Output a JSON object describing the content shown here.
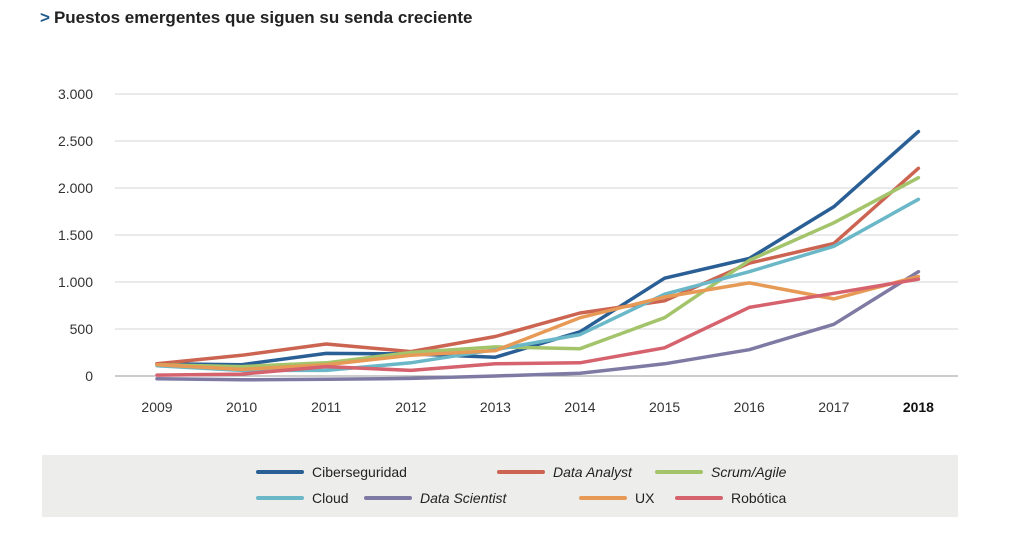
{
  "title": {
    "marker": ">",
    "text": "Puestos emergentes que siguen su senda creciente"
  },
  "chart_data": {
    "type": "line",
    "title": "Puestos emergentes que siguen su senda creciente",
    "xlabel": "",
    "ylabel": "",
    "categories": [
      "2009",
      "2010",
      "2011",
      "2012",
      "2013",
      "2014",
      "2015",
      "2016",
      "2017",
      "2018"
    ],
    "highlight_category": "2018",
    "ylim": [
      0,
      3000
    ],
    "yticks": [
      0,
      500,
      1000,
      1500,
      2000,
      2500,
      3000
    ],
    "ytick_labels": [
      "0",
      "500",
      "1.000",
      "1.500",
      "2.000",
      "2.500",
      "3.000"
    ],
    "grid": true,
    "legend_position": "bottom",
    "series": [
      {
        "name": "Ciberseguridad",
        "italic": false,
        "color": "#2a5f96",
        "values": [
          130,
          120,
          240,
          235,
          200,
          470,
          1040,
          1250,
          1800,
          2600
        ]
      },
      {
        "name": "Data Analyst",
        "italic": true,
        "color": "#cc6452",
        "values": [
          130,
          220,
          340,
          260,
          420,
          670,
          800,
          1200,
          1410,
          2210
        ]
      },
      {
        "name": "Scrum/Agile",
        "italic": true,
        "color": "#a3c46a",
        "values": [
          120,
          100,
          140,
          250,
          310,
          290,
          620,
          1230,
          1630,
          2110
        ]
      },
      {
        "name": "Cloud",
        "italic": false,
        "color": "#6ab7c8",
        "values": [
          110,
          60,
          60,
          140,
          280,
          440,
          870,
          1110,
          1380,
          1880
        ]
      },
      {
        "name": "Data Scientist",
        "italic": true,
        "color": "#7e7aa4",
        "values": [
          -30,
          -40,
          -35,
          -25,
          0,
          30,
          130,
          280,
          550,
          1110
        ]
      },
      {
        "name": "UX",
        "italic": false,
        "color": "#e79a55",
        "values": [
          120,
          70,
          120,
          220,
          270,
          620,
          840,
          990,
          820,
          1060
        ]
      },
      {
        "name": "Robótica",
        "italic": false,
        "color": "#d5626d",
        "values": [
          10,
          20,
          100,
          60,
          130,
          140,
          300,
          730,
          880,
          1030
        ]
      }
    ]
  }
}
